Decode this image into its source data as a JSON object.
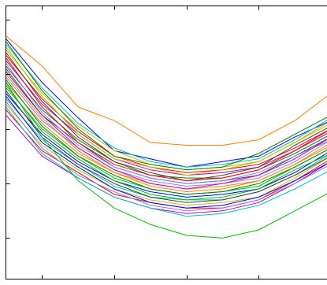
{
  "chart_data": {
    "type": "line",
    "x": [
      0,
      1,
      2,
      3,
      4,
      5,
      6,
      7,
      8,
      9
    ],
    "xlim": [
      0,
      9
    ],
    "ylim": [
      0,
      100
    ],
    "xticks": [
      1,
      3,
      5,
      7
    ],
    "yticks": [
      15,
      35,
      55,
      75,
      95
    ],
    "grid": false,
    "legend": "none",
    "colors": [
      "#0000ff",
      "#00bfbf",
      "#bfbf00",
      "#ff0000",
      "#bf00bf",
      "#008000",
      "#3f3f3f",
      "#7f7fff",
      "#ff7f00",
      "#00bf00"
    ],
    "series": [
      {
        "values": [
          88,
          72,
          59,
          47,
          44,
          41,
          43,
          45,
          52,
          58
        ]
      },
      {
        "values": [
          86,
          70,
          57,
          48,
          43,
          41,
          42,
          44,
          51,
          59
        ]
      },
      {
        "values": [
          84,
          68,
          56,
          47,
          42,
          40,
          41,
          43,
          50,
          57
        ]
      },
      {
        "values": [
          82,
          66,
          54,
          45,
          41,
          39,
          40,
          42,
          48,
          55
        ]
      },
      {
        "values": [
          80,
          64,
          53,
          44,
          40,
          38,
          39,
          41,
          47,
          54
        ]
      },
      {
        "values": [
          78,
          62,
          51,
          43,
          38,
          37,
          37,
          40,
          46,
          53
        ]
      },
      {
        "values": [
          76,
          60,
          50,
          41,
          37,
          35,
          36,
          38,
          45,
          52
        ]
      },
      {
        "values": [
          74,
          58,
          48,
          40,
          36,
          34,
          35,
          37,
          43,
          51
        ]
      },
      {
        "values": [
          72,
          57,
          46,
          39,
          35,
          33,
          34,
          36,
          42,
          50
        ]
      },
      {
        "values": [
          70,
          55,
          45,
          37,
          33,
          31,
          32,
          34,
          41,
          48
        ]
      },
      {
        "values": [
          68,
          53,
          43,
          36,
          32,
          30,
          31,
          33,
          39,
          47
        ]
      },
      {
        "values": [
          66,
          51,
          42,
          34,
          30,
          29,
          29,
          32,
          38,
          46
        ]
      },
      {
        "values": [
          64,
          49,
          40,
          33,
          29,
          27,
          28,
          30,
          37,
          45
        ]
      },
      {
        "values": [
          62,
          47,
          39,
          31,
          28,
          26,
          26,
          29,
          36,
          44
        ]
      },
      {
        "values": [
          60,
          45,
          37,
          30,
          26,
          24,
          25,
          28,
          35,
          43
        ]
      },
      {
        "values": [
          87,
          69,
          55,
          45,
          42,
          40,
          41,
          46,
          53,
          60
        ]
      },
      {
        "values": [
          83,
          65,
          52,
          43,
          39,
          36,
          38,
          41,
          49,
          56
        ]
      },
      {
        "values": [
          79,
          61,
          49,
          41,
          37,
          35,
          36,
          39,
          45,
          51
        ]
      },
      {
        "values": [
          75,
          59,
          47,
          39,
          34,
          32,
          33,
          36,
          42,
          49
        ]
      },
      {
        "values": [
          71,
          54,
          44,
          36,
          31,
          29,
          30,
          33,
          40,
          46
        ]
      },
      {
        "values": [
          67,
          50,
          41,
          33,
          28,
          26,
          27,
          30,
          36,
          43
        ]
      },
      {
        "values": [
          63,
          46,
          37,
          30,
          26,
          23,
          24,
          27,
          33,
          40
        ]
      },
      {
        "values": [
          85,
          67,
          53,
          44,
          41,
          38,
          40,
          43,
          50,
          58
        ]
      },
      {
        "values": [
          81,
          63,
          50,
          42,
          38,
          36,
          37,
          40,
          47,
          55
        ]
      },
      {
        "values": [
          77,
          60,
          48,
          40,
          35,
          33,
          35,
          38,
          44,
          52
        ]
      },
      {
        "values": [
          73,
          56,
          45,
          38,
          33,
          31,
          32,
          35,
          41,
          48
        ]
      },
      {
        "values": [
          69,
          52,
          42,
          35,
          30,
          28,
          29,
          32,
          38,
          45
        ]
      },
      {
        "values": [
          65,
          48,
          38,
          32,
          27,
          25,
          26,
          29,
          35,
          42
        ]
      },
      {
        "values": [
          89,
          78,
          63,
          58,
          50,
          49,
          49,
          51,
          58,
          68
        ]
      },
      {
        "values": [
          72,
          52,
          36,
          26,
          20,
          16,
          15,
          18,
          25,
          32
        ]
      }
    ]
  }
}
